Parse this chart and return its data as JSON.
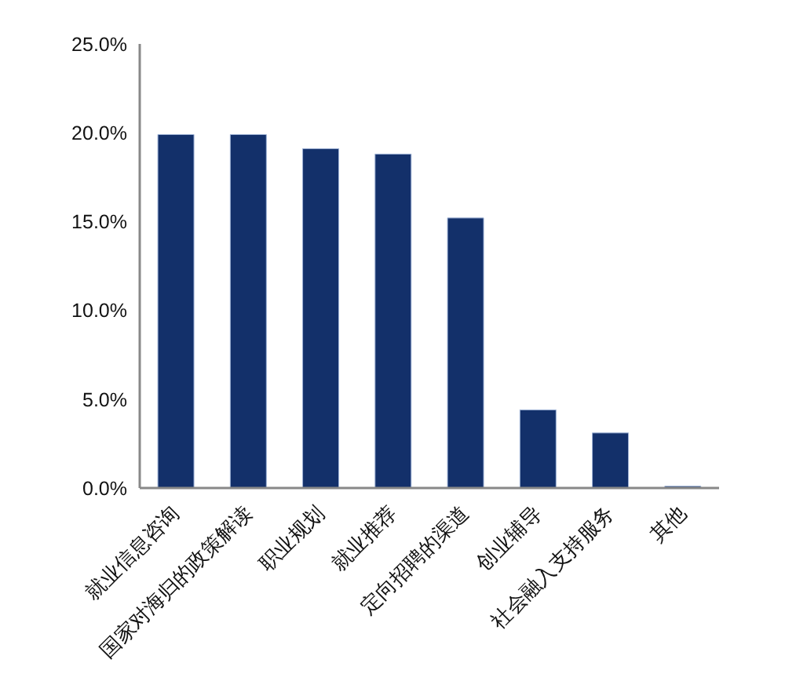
{
  "chart_data": {
    "type": "bar",
    "categories": [
      "就业信息咨询",
      "国家对海归的政策解读",
      "职业规划",
      "就业推荐",
      "定向招聘的渠道",
      "创业辅导",
      "社会融入支持服务",
      "其他"
    ],
    "values": [
      19.9,
      19.9,
      19.1,
      18.8,
      15.2,
      4.4,
      3.1,
      0.1
    ],
    "color": "#13306a",
    "ylim": [
      0,
      25
    ],
    "yticks": [
      {
        "value": 0,
        "label": "0.0%"
      },
      {
        "value": 5,
        "label": "5.0%"
      },
      {
        "value": 10,
        "label": "10.0%"
      },
      {
        "value": 15,
        "label": "15.0%"
      },
      {
        "value": 20,
        "label": "20.0%"
      },
      {
        "value": 25,
        "label": "25.0%"
      }
    ]
  }
}
